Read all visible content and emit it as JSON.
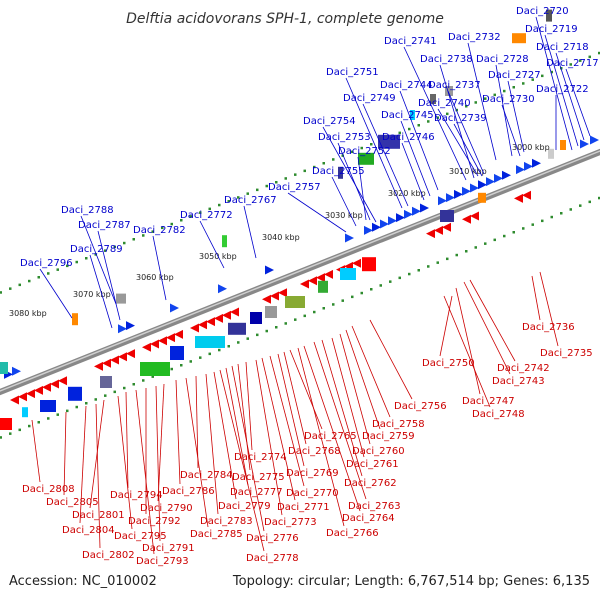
{
  "title": "Delftia acidovorans SPH-1, complete genome",
  "accession": "Accession: NC_010002",
  "topology": "Topology: circular; Length: 6,767,514 bp; Genes: 6,135",
  "colors": {
    "top_label": "#0000cc",
    "bottom_label": "#cc0000",
    "backbone": "#888888",
    "tick_green": "#2e8b2e"
  },
  "kbp_ticks": [
    "3000 kbp",
    "3010 kbp",
    "3020 kbp",
    "3030 kbp",
    "3040 kbp",
    "3050 kbp",
    "3060 kbp",
    "3070 kbp",
    "3080 kbp"
  ],
  "top_genes": [
    "Daci_2720",
    "Daci_2719",
    "Daci_2718",
    "Daci_2717",
    "Daci_2722",
    "Daci_2732",
    "Daci_2728",
    "Daci_2727",
    "Daci_2730",
    "Daci_2741",
    "Daci_2738",
    "Daci_2737",
    "Daci_2740",
    "Daci_2739",
    "Daci_2744",
    "Daci_2745",
    "Daci_2746",
    "Daci_2751",
    "Daci_2749",
    "Daci_2754",
    "Daci_2753",
    "Daci_2752",
    "Daci_2755",
    "Daci_2757",
    "Daci_2767",
    "Daci_2772",
    "Daci_2782",
    "Daci_2788",
    "Daci_2787",
    "Daci_2789",
    "Daci_2796"
  ],
  "bottom_genes": [
    "Daci_2736",
    "Daci_2735",
    "Daci_2742",
    "Daci_2743",
    "Daci_2750",
    "Daci_2747",
    "Daci_2748",
    "Daci_2756",
    "Daci_2758",
    "Daci_2759",
    "Daci_2760",
    "Daci_2761",
    "Daci_2762",
    "Daci_2763",
    "Daci_2764",
    "Daci_2765",
    "Daci_2766",
    "Daci_2768",
    "Daci_2769",
    "Daci_2770",
    "Daci_2771",
    "Daci_2773",
    "Daci_2774",
    "Daci_2775",
    "Daci_2776",
    "Daci_2777",
    "Daci_2778",
    "Daci_2779",
    "Daci_2783",
    "Daci_2784",
    "Daci_2785",
    "Daci_2786",
    "Daci_2790",
    "Daci_2791",
    "Daci_2792",
    "Daci_2793",
    "Daci_2794",
    "Daci_2795",
    "Daci_2801",
    "Daci_2802",
    "Daci_2804",
    "Daci_2805",
    "Daci_2808"
  ]
}
